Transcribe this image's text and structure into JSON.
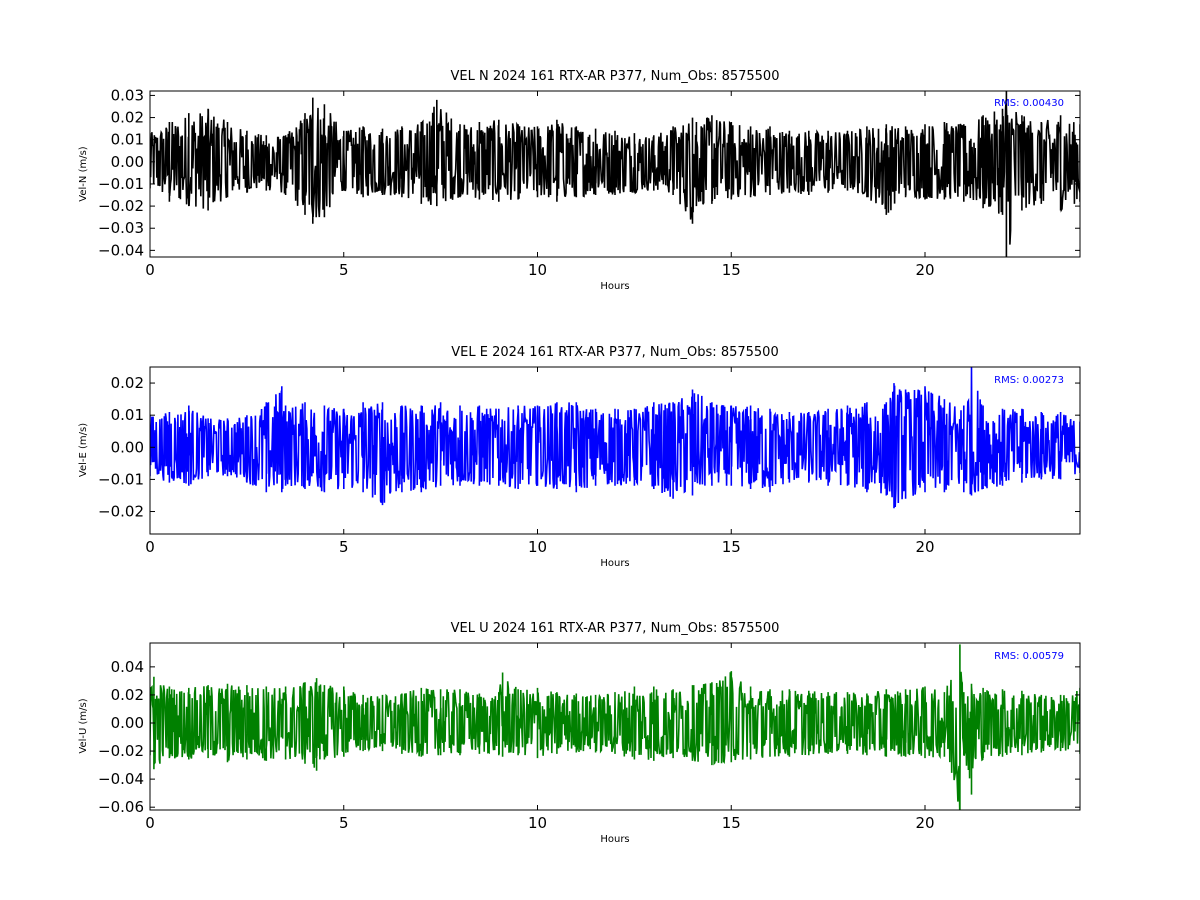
{
  "chart_data": [
    {
      "type": "line",
      "title": "VEL N 2024 161 RTX-AR  P377, Num_Obs: 8575500",
      "xlabel": "Hours",
      "ylabel": "Vel-N (m/s)",
      "xlim": [
        0,
        24
      ],
      "ylim": [
        -0.043,
        0.032
      ],
      "xticks": [
        0,
        5,
        10,
        15,
        20
      ],
      "xtick_labels": [
        "0",
        "5",
        "10",
        "15",
        "20"
      ],
      "yticks": [
        -0.04,
        -0.03,
        -0.02,
        -0.01,
        0.0,
        0.01,
        0.02,
        0.03
      ],
      "ytick_labels": [
        "−0.04",
        "−0.03",
        "−0.02",
        "−0.01",
        "0.00",
        "0.01",
        "0.02",
        "0.03"
      ],
      "annotation": "RMS:  0.00430",
      "annotation_color": "#0000ff",
      "line_color": "#000000",
      "grid": false,
      "series": [
        {
          "x": [
            0,
            0.5,
            1,
            1.5,
            2,
            2.5,
            3,
            3.5,
            4,
            4.2,
            4.5,
            5,
            5.5,
            6,
            6.5,
            7,
            7.4,
            8,
            8.5,
            9,
            9.5,
            10,
            10.5,
            11,
            11.5,
            12,
            12.5,
            13,
            13.5,
            14,
            14.1,
            14.5,
            15,
            15.5,
            16,
            16.5,
            17,
            17.5,
            18,
            18.5,
            19,
            19.5,
            20,
            20.5,
            21,
            21.5,
            22,
            22.1,
            22.5,
            23,
            23.5,
            24
          ],
          "upper": [
            0.013,
            0.018,
            0.022,
            0.024,
            0.018,
            0.014,
            0.012,
            0.012,
            0.022,
            0.029,
            0.026,
            0.014,
            0.016,
            0.015,
            0.016,
            0.018,
            0.028,
            0.017,
            0.018,
            0.019,
            0.017,
            0.016,
            0.019,
            0.016,
            0.015,
            0.014,
            0.013,
            0.012,
            0.016,
            0.02,
            0.018,
            0.021,
            0.018,
            0.016,
            0.016,
            0.014,
            0.014,
            0.014,
            0.014,
            0.016,
            0.017,
            0.016,
            0.017,
            0.018,
            0.017,
            0.021,
            0.024,
            0.033,
            0.021,
            0.018,
            0.021,
            0.017
          ],
          "lower": [
            -0.012,
            -0.018,
            -0.02,
            -0.022,
            -0.016,
            -0.014,
            -0.013,
            -0.015,
            -0.024,
            -0.028,
            -0.025,
            -0.013,
            -0.016,
            -0.015,
            -0.016,
            -0.019,
            -0.02,
            -0.016,
            -0.017,
            -0.018,
            -0.017,
            -0.016,
            -0.018,
            -0.016,
            -0.015,
            -0.015,
            -0.014,
            -0.013,
            -0.015,
            -0.028,
            -0.02,
            -0.019,
            -0.017,
            -0.016,
            -0.015,
            -0.014,
            -0.015,
            -0.014,
            -0.013,
            -0.016,
            -0.024,
            -0.016,
            -0.017,
            -0.017,
            -0.018,
            -0.021,
            -0.024,
            -0.043,
            -0.022,
            -0.019,
            -0.022,
            -0.018
          ]
        }
      ]
    },
    {
      "type": "line",
      "title": "VEL E 2024 161 RTX-AR  P377, Num_Obs: 8575500",
      "xlabel": "Hours",
      "ylabel": "Vel-E (m/s)",
      "xlim": [
        0,
        24
      ],
      "ylim": [
        -0.027,
        0.025
      ],
      "xticks": [
        0,
        5,
        10,
        15,
        20
      ],
      "xtick_labels": [
        "0",
        "5",
        "10",
        "15",
        "20"
      ],
      "yticks": [
        -0.02,
        -0.01,
        0.0,
        0.01,
        0.02
      ],
      "ytick_labels": [
        "−0.02",
        "−0.01",
        "0.00",
        "0.01",
        "0.02"
      ],
      "annotation": "RMS:  0.00273",
      "annotation_color": "#0000ff",
      "line_color": "#0000ff",
      "grid": false,
      "series": [
        {
          "x": [
            0,
            0.5,
            1,
            1.5,
            2,
            2.5,
            3,
            3.4,
            3.5,
            4,
            4.5,
            5,
            5.5,
            6,
            6.5,
            7,
            7.5,
            8,
            8.5,
            9,
            9.5,
            10,
            10.5,
            11,
            11.5,
            12,
            12.5,
            13,
            13.5,
            14,
            14.5,
            15,
            15.5,
            16,
            16.5,
            17,
            17.5,
            18,
            18.5,
            19,
            19.2,
            19.5,
            20,
            20.5,
            21,
            21.2,
            21.5,
            22,
            22.5,
            23,
            23.5,
            24
          ],
          "upper": [
            0.01,
            0.011,
            0.013,
            0.009,
            0.009,
            0.01,
            0.014,
            0.019,
            0.013,
            0.014,
            0.013,
            0.012,
            0.014,
            0.014,
            0.013,
            0.013,
            0.014,
            0.013,
            0.013,
            0.012,
            0.013,
            0.013,
            0.014,
            0.014,
            0.012,
            0.012,
            0.012,
            0.014,
            0.014,
            0.018,
            0.014,
            0.013,
            0.013,
            0.012,
            0.011,
            0.011,
            0.012,
            0.013,
            0.014,
            0.014,
            0.02,
            0.018,
            0.019,
            0.015,
            0.013,
            0.025,
            0.013,
            0.012,
            0.012,
            0.011,
            0.011,
            0.008
          ],
          "lower": [
            -0.009,
            -0.011,
            -0.012,
            -0.009,
            -0.009,
            -0.011,
            -0.014,
            -0.014,
            -0.012,
            -0.013,
            -0.014,
            -0.013,
            -0.014,
            -0.018,
            -0.014,
            -0.014,
            -0.012,
            -0.012,
            -0.012,
            -0.012,
            -0.013,
            -0.012,
            -0.013,
            -0.014,
            -0.012,
            -0.012,
            -0.012,
            -0.013,
            -0.016,
            -0.015,
            -0.012,
            -0.012,
            -0.013,
            -0.014,
            -0.011,
            -0.011,
            -0.012,
            -0.012,
            -0.014,
            -0.015,
            -0.019,
            -0.016,
            -0.014,
            -0.014,
            -0.014,
            -0.015,
            -0.013,
            -0.012,
            -0.011,
            -0.01,
            -0.01,
            -0.008
          ]
        }
      ]
    },
    {
      "type": "line",
      "title": "VEL U 2024 161 RTX-AR  P377, Num_Obs: 8575500",
      "xlabel": "Hours",
      "ylabel": "Vel-U (m/s)",
      "xlim": [
        0,
        24
      ],
      "ylim": [
        -0.062,
        0.057
      ],
      "xticks": [
        0,
        5,
        10,
        15,
        20
      ],
      "xtick_labels": [
        "0",
        "5",
        "10",
        "15",
        "20"
      ],
      "yticks": [
        -0.06,
        -0.04,
        -0.02,
        0.0,
        0.02,
        0.04
      ],
      "ytick_labels": [
        "−0.06",
        "−0.04",
        "−0.02",
        "0.00",
        "0.02",
        "0.04"
      ],
      "annotation": "RMS:  0.00579",
      "annotation_color": "#0000ff",
      "line_color": "#008000",
      "grid": false,
      "series": [
        {
          "x": [
            0,
            0.1,
            0.5,
            1,
            1.5,
            2,
            2.5,
            3,
            3.5,
            4,
            4.3,
            4.5,
            5,
            5.5,
            6,
            6.5,
            7,
            7.5,
            8,
            8.5,
            9,
            9.1,
            9.5,
            10,
            10.5,
            11,
            11.5,
            12,
            12.5,
            13,
            13.5,
            14,
            14.5,
            15,
            15.5,
            16,
            16.5,
            17,
            17.5,
            18,
            18.5,
            19,
            19.5,
            20,
            20.5,
            20.9,
            21,
            21.2,
            21.5,
            22,
            22.5,
            23,
            23.5,
            24
          ],
          "upper": [
            0.025,
            0.033,
            0.026,
            0.025,
            0.027,
            0.028,
            0.027,
            0.026,
            0.026,
            0.029,
            0.032,
            0.027,
            0.026,
            0.02,
            0.02,
            0.021,
            0.025,
            0.024,
            0.024,
            0.021,
            0.022,
            0.036,
            0.024,
            0.025,
            0.022,
            0.021,
            0.02,
            0.022,
            0.026,
            0.026,
            0.024,
            0.027,
            0.029,
            0.037,
            0.026,
            0.024,
            0.024,
            0.023,
            0.022,
            0.022,
            0.021,
            0.024,
            0.024,
            0.026,
            0.022,
            0.056,
            0.022,
            0.028,
            0.025,
            0.024,
            0.023,
            0.02,
            0.02,
            0.025
          ],
          "lower": [
            -0.023,
            -0.033,
            -0.025,
            -0.026,
            -0.025,
            -0.028,
            -0.026,
            -0.027,
            -0.026,
            -0.029,
            -0.034,
            -0.026,
            -0.024,
            -0.02,
            -0.02,
            -0.022,
            -0.024,
            -0.023,
            -0.023,
            -0.022,
            -0.023,
            -0.024,
            -0.023,
            -0.025,
            -0.022,
            -0.021,
            -0.021,
            -0.022,
            -0.026,
            -0.027,
            -0.025,
            -0.027,
            -0.03,
            -0.028,
            -0.026,
            -0.024,
            -0.024,
            -0.023,
            -0.022,
            -0.022,
            -0.023,
            -0.024,
            -0.024,
            -0.025,
            -0.024,
            -0.062,
            -0.023,
            -0.051,
            -0.025,
            -0.024,
            -0.023,
            -0.021,
            -0.02,
            -0.022
          ]
        }
      ]
    }
  ]
}
